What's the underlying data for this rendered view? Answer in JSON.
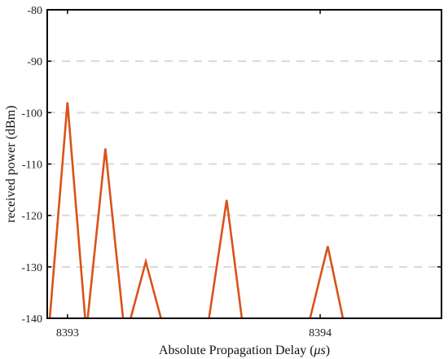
{
  "chart_data": {
    "type": "line",
    "xlabel": "Absolute Propagation Delay (",
    "xlabel_unit": "μs",
    "xlabel_suffix": ")",
    "ylabel": "received power (dBm)",
    "xlim": [
      8392.92,
      8394.48
    ],
    "ylim": [
      -140,
      -80
    ],
    "x_ticks": [
      8393,
      8394
    ],
    "x_tick_labels": [
      "8393",
      "8394"
    ],
    "y_ticks": [
      -80,
      -90,
      -100,
      -110,
      -120,
      -130,
      -140
    ],
    "y_tick_labels": [
      "-80",
      "-90",
      "-100",
      "-110",
      "-120",
      "-130",
      "-140"
    ],
    "grid": "horizontal dashed",
    "series": [
      {
        "color": "#D95319",
        "segments": [
          [
            [
              8392.93,
              -140
            ],
            [
              8393.0,
              -98
            ],
            [
              8393.07,
              -140
            ]
          ],
          [
            [
              8393.08,
              -140
            ],
            [
              8393.15,
              -107
            ],
            [
              8393.22,
              -140
            ]
          ],
          [
            [
              8393.25,
              -140
            ],
            [
              8393.31,
              -129
            ],
            [
              8393.37,
              -140
            ]
          ],
          [
            [
              8393.56,
              -140
            ],
            [
              8393.63,
              -117
            ],
            [
              8393.69,
              -140
            ]
          ],
          [
            [
              8393.96,
              -140
            ],
            [
              8394.03,
              -126
            ],
            [
              8394.09,
              -140
            ]
          ]
        ]
      }
    ],
    "colors": {
      "axis": "#000000",
      "grid": "#d9d9d9",
      "background": "#ffffff"
    }
  }
}
